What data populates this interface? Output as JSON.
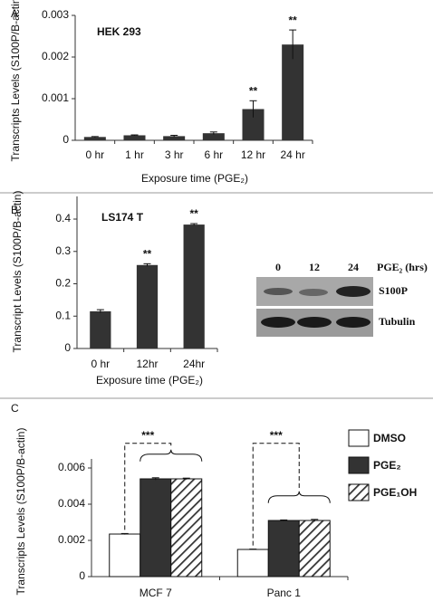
{
  "chart_data": [
    {
      "type": "bar",
      "label": "A",
      "title": "HEK 293",
      "ylabel": "Transcripts Levels (S100P/B-actin)",
      "xlabel": "Exposure time (PGE₂)",
      "categories": [
        "0 hr",
        "1 hr",
        "3 hr",
        "6 hr",
        "12 hr",
        "24 hr"
      ],
      "values": [
        8e-05,
        0.00012,
        0.0001,
        0.00017,
        0.00075,
        0.0023
      ],
      "errors": [
        1e-05,
        1e-05,
        2e-05,
        3e-05,
        0.0002,
        0.00035
      ],
      "significance": [
        null,
        null,
        null,
        null,
        "**",
        "**"
      ],
      "color": "#333333",
      "ylim": [
        0,
        0.003
      ],
      "yticks": [
        0,
        0.001,
        0.002,
        0.003
      ]
    },
    {
      "type": "bar",
      "label": "B",
      "title": "LS174 T",
      "ylabel": "Transcript Levels (S100P/B-actin)",
      "xlabel": "Exposure time (PGE₂)",
      "categories": [
        "0 hr",
        "12hr",
        "24hr"
      ],
      "values": [
        0.115,
        0.258,
        0.383
      ],
      "errors": [
        0.005,
        0.004,
        0.003
      ],
      "significance": [
        null,
        "**",
        "**"
      ],
      "color": "#333333",
      "ylim": [
        0,
        0.47
      ],
      "yticks": [
        0,
        0.1,
        0.2,
        0.3,
        0.4
      ],
      "blot": {
        "lanes": [
          "0",
          "12",
          "24"
        ],
        "unit": "PGE₂ (hrs)",
        "rows": [
          "S100P",
          "Tubulin"
        ]
      }
    },
    {
      "type": "bar",
      "label": "C",
      "ylabel": "Transcripts Levels (S100P/B-actin)",
      "categories": [
        "MCF 7",
        "Panc 1"
      ],
      "series": [
        {
          "name": "DMSO",
          "color": "#ffffff",
          "values": [
            0.00235,
            0.0015
          ],
          "errors": [
            3e-05,
            2e-05
          ]
        },
        {
          "name": "PGE₂",
          "color": "#333333",
          "values": [
            0.0054,
            0.0031
          ],
          "errors": [
            6e-05,
            3e-05
          ]
        },
        {
          "name": "PGE₁OH",
          "color": "#ffffff",
          "pattern": "hatch",
          "values": [
            0.0054,
            0.0031
          ],
          "errors": [
            4e-05,
            6e-05
          ]
        }
      ],
      "significance": [
        "***",
        "***"
      ],
      "ylim": [
        0,
        0.0065
      ],
      "yticks": [
        0,
        0.002,
        0.004,
        0.006
      ]
    }
  ]
}
